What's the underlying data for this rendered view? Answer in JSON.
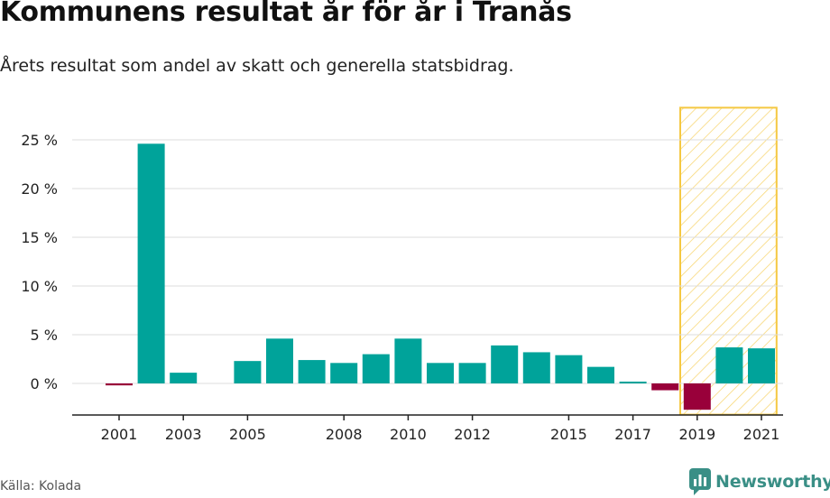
{
  "header": {
    "title": "Kommunens resultat år för år i Tranås",
    "subtitle": "Årets resultat som andel av skatt och generella statsbidrag."
  },
  "footer": {
    "source": "Källa: Kolada",
    "brand": "Newsworthy",
    "brand_icon": "newsworthy-logo-icon"
  },
  "colors": {
    "positive": "#00a39a",
    "negative": "#99003a",
    "forecast_band": "#f5c842",
    "gridline": "#dddddd",
    "axis": "#222222"
  },
  "chart_data": {
    "type": "bar",
    "title": "Kommunens resultat år för år i Tranås",
    "subtitle": "Årets resultat som andel av skatt och generella statsbidrag.",
    "xlabel": "",
    "ylabel": "",
    "categories": [
      2001,
      2002,
      2003,
      2004,
      2005,
      2006,
      2007,
      2008,
      2009,
      2010,
      2011,
      2012,
      2013,
      2014,
      2015,
      2016,
      2017,
      2018,
      2019,
      2020,
      2021
    ],
    "values": [
      -0.2,
      24.6,
      1.1,
      null,
      2.3,
      4.6,
      2.4,
      2.1,
      3.0,
      4.6,
      2.1,
      2.1,
      3.9,
      3.2,
      2.9,
      1.7,
      0.1,
      -0.7,
      -2.7,
      3.7,
      3.6
    ],
    "x_tick_labels": [
      "2001",
      "2003",
      "2005",
      "2008",
      "2010",
      "2012",
      "2015",
      "2017",
      "2019",
      "2021"
    ],
    "y_ticks": [
      0,
      5,
      10,
      15,
      20,
      25
    ],
    "y_tick_labels": [
      "0 %",
      "5 %",
      "10 %",
      "15 %",
      "20 %",
      "25 %"
    ],
    "ylim": [
      -3.2,
      28.3
    ],
    "grid": true,
    "highlight_band": {
      "from": 2019,
      "to": 2021
    },
    "source": "Källa: Kolada"
  }
}
